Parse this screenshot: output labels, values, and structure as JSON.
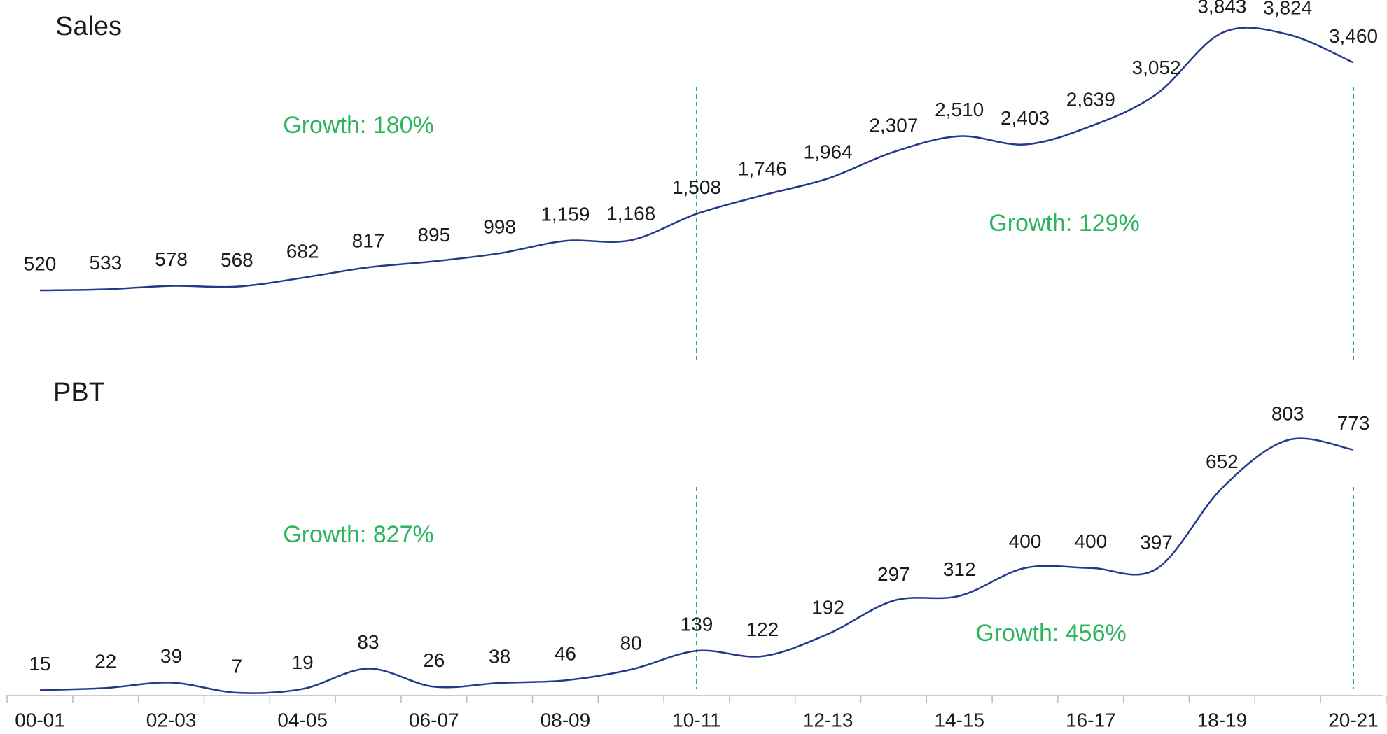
{
  "chart_data": [
    {
      "type": "line",
      "title": "Sales",
      "color": "#24398a",
      "values": [
        520,
        533,
        578,
        568,
        682,
        817,
        895,
        998,
        1159,
        1168,
        1508,
        1746,
        1964,
        2307,
        2510,
        2403,
        2639,
        3052,
        3843,
        3824,
        3460
      ],
      "value_labels": [
        "520",
        "533",
        "578",
        "568",
        "682",
        "817",
        "895",
        "998",
        "1,159",
        "1,168",
        "1,508",
        "1,746",
        "1,964",
        "2,307",
        "2,510",
        "2,403",
        "2,639",
        "3,052",
        "3,843",
        "3,824",
        "3,460"
      ],
      "annotations": [
        "Growth: 180%",
        "Growth: 129%"
      ]
    },
    {
      "type": "line",
      "title": "PBT",
      "color": "#24398a",
      "categories": [
        "00-01",
        null,
        "02-03",
        null,
        "04-05",
        null,
        "06-07",
        null,
        "08-09",
        null,
        "10-11",
        null,
        "12-13",
        null,
        "14-15",
        null,
        "16-17",
        null,
        "18-19",
        null,
        "20-21"
      ],
      "values": [
        15,
        22,
        39,
        7,
        19,
        83,
        26,
        38,
        46,
        80,
        139,
        122,
        192,
        297,
        312,
        400,
        400,
        397,
        652,
        803,
        773
      ],
      "annotations": [
        "Growth: 827%",
        "Growth: 456%"
      ]
    }
  ]
}
